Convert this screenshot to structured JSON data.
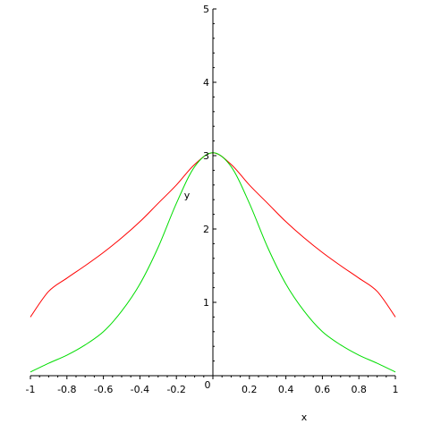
{
  "chart_data": {
    "type": "line",
    "title": "",
    "xlabel": "x",
    "ylabel": "y",
    "xlim": [
      -1,
      1
    ],
    "ylim": [
      0,
      5
    ],
    "grid": false,
    "legend": "none",
    "x_ticks": [
      {
        "value": -1,
        "label": "-1"
      },
      {
        "value": -0.8,
        "label": "-0.8"
      },
      {
        "value": -0.6,
        "label": "-0.6"
      },
      {
        "value": -0.4,
        "label": "-0.4"
      },
      {
        "value": -0.2,
        "label": "-0.2"
      },
      {
        "value": 0,
        "label": "0"
      },
      {
        "value": 0.2,
        "label": "0.2"
      },
      {
        "value": 0.4,
        "label": "0.4"
      },
      {
        "value": 0.6,
        "label": "0.6"
      },
      {
        "value": 0.8,
        "label": "0.8"
      },
      {
        "value": 1,
        "label": "1"
      }
    ],
    "y_ticks": [
      {
        "value": 1,
        "label": "1"
      },
      {
        "value": 2,
        "label": "2"
      },
      {
        "value": 3,
        "label": "3"
      },
      {
        "value": 4,
        "label": "4"
      },
      {
        "value": 5,
        "label": "5"
      }
    ],
    "x": [
      -1,
      -0.9,
      -0.8,
      -0.7,
      -0.6,
      -0.5,
      -0.4,
      -0.3,
      -0.2,
      -0.1,
      0,
      0.1,
      0.2,
      0.3,
      0.4,
      0.5,
      0.6,
      0.7,
      0.8,
      0.9,
      1
    ],
    "series": [
      {
        "color": "#ff0000",
        "values": [
          0.8,
          1.15,
          1.33,
          1.5,
          1.68,
          1.88,
          2.1,
          2.35,
          2.6,
          2.88,
          3.04,
          2.88,
          2.6,
          2.35,
          2.1,
          1.88,
          1.68,
          1.5,
          1.33,
          1.15,
          0.8
        ]
      },
      {
        "color": "#00dd00",
        "values": [
          0.05,
          0.17,
          0.28,
          0.42,
          0.6,
          0.88,
          1.25,
          1.75,
          2.35,
          2.85,
          3.04,
          2.85,
          2.35,
          1.75,
          1.25,
          0.88,
          0.6,
          0.42,
          0.28,
          0.17,
          0.05
        ]
      }
    ]
  }
}
